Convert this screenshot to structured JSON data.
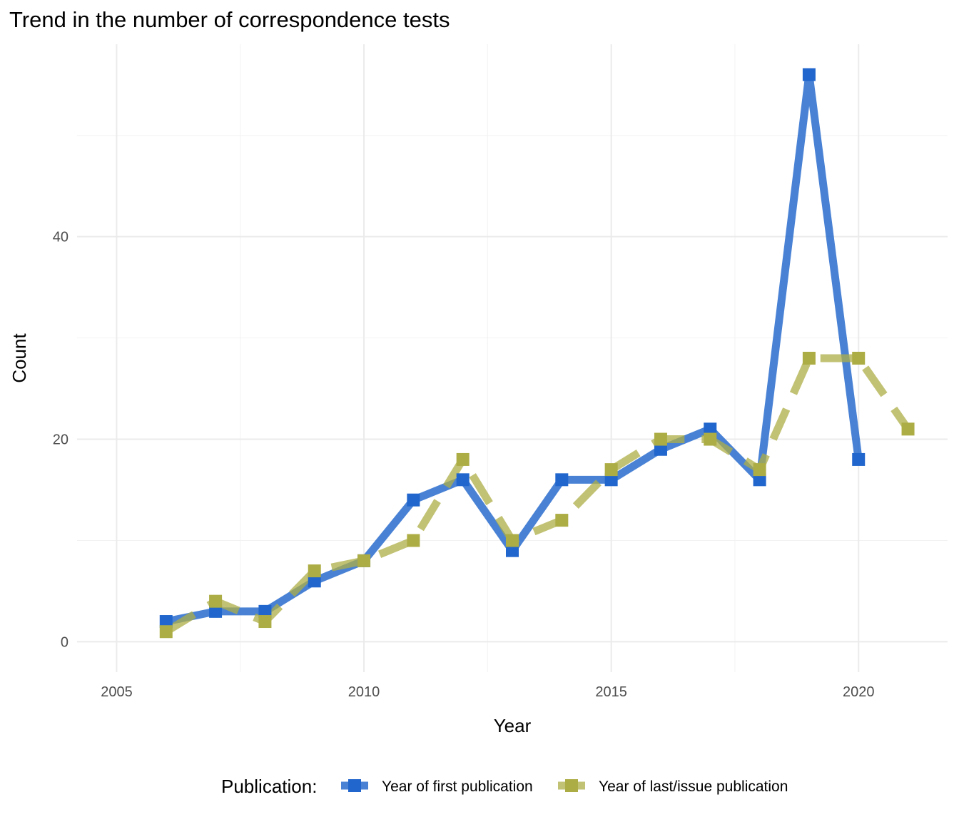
{
  "chart_data": {
    "type": "line",
    "title": "Trend in the number of correspondence tests",
    "xlabel": "Year",
    "ylabel": "Count",
    "xlim": [
      2004.2,
      2021.8
    ],
    "ylim": [
      -3,
      59
    ],
    "x_ticks": [
      2005,
      2010,
      2015,
      2020
    ],
    "y_ticks": [
      0,
      20,
      40
    ],
    "grid": true,
    "legend_position": "bottom",
    "legend_title": "Publication:",
    "series": [
      {
        "name": "Year of first publication",
        "color": "#2166cc",
        "line_style": "solid",
        "points": [
          {
            "x": 2006,
            "y": 2
          },
          {
            "x": 2007,
            "y": 3
          },
          {
            "x": 2008,
            "y": 3
          },
          {
            "x": 2009,
            "y": 6
          },
          {
            "x": 2010,
            "y": 8
          },
          {
            "x": 2011,
            "y": 14
          },
          {
            "x": 2012,
            "y": 16
          },
          {
            "x": 2013,
            "y": 9
          },
          {
            "x": 2014,
            "y": 16
          },
          {
            "x": 2015,
            "y": 16
          },
          {
            "x": 2016,
            "y": 19
          },
          {
            "x": 2017,
            "y": 21
          },
          {
            "x": 2018,
            "y": 16
          },
          {
            "x": 2019,
            "y": 56
          },
          {
            "x": 2020,
            "y": 18
          }
        ]
      },
      {
        "name": "Year of last/issue publication",
        "color": "#adad45",
        "line_style": "dashed",
        "points": [
          {
            "x": 2006,
            "y": 1
          },
          {
            "x": 2007,
            "y": 4
          },
          {
            "x": 2008,
            "y": 2
          },
          {
            "x": 2009,
            "y": 7
          },
          {
            "x": 2010,
            "y": 8
          },
          {
            "x": 2011,
            "y": 10
          },
          {
            "x": 2012,
            "y": 18
          },
          {
            "x": 2013,
            "y": 10
          },
          {
            "x": 2014,
            "y": 12
          },
          {
            "x": 2015,
            "y": 17
          },
          {
            "x": 2016,
            "y": 20
          },
          {
            "x": 2017,
            "y": 20
          },
          {
            "x": 2018,
            "y": 17
          },
          {
            "x": 2019,
            "y": 28
          },
          {
            "x": 2020,
            "y": 28
          },
          {
            "x": 2021,
            "y": 21
          }
        ]
      }
    ]
  }
}
